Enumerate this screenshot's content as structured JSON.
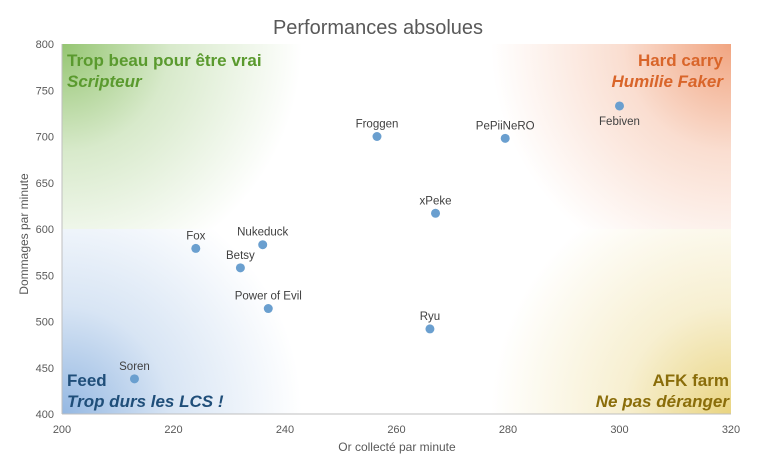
{
  "chart_data": {
    "type": "scatter",
    "title": "Performances absolues",
    "xlabel": "Or collecté par minute",
    "ylabel": "Dommages par minute",
    "xlim": [
      200,
      320
    ],
    "ylim": [
      400,
      800
    ],
    "xticks": [
      "200",
      "220",
      "240",
      "260",
      "280",
      "300",
      "320"
    ],
    "yticks": [
      "400",
      "450",
      "500",
      "550",
      "600",
      "650",
      "700",
      "750",
      "800"
    ],
    "grid": false,
    "point_color": "#6a9fcf",
    "points": [
      {
        "label": "Froggen",
        "x": 256.5,
        "y": 700,
        "label_pos": "above"
      },
      {
        "label": "PePiiNeRO",
        "x": 279.5,
        "y": 698,
        "label_pos": "above"
      },
      {
        "label": "Febiven",
        "x": 300,
        "y": 733,
        "label_pos": "below"
      },
      {
        "label": "xPeke",
        "x": 267,
        "y": 617,
        "label_pos": "above"
      },
      {
        "label": "Fox",
        "x": 224,
        "y": 579,
        "label_pos": "above"
      },
      {
        "label": "Nukeduck",
        "x": 236,
        "y": 583,
        "label_pos": "above"
      },
      {
        "label": "Betsy",
        "x": 232,
        "y": 558,
        "label_pos": "above"
      },
      {
        "label": "Power of Evil",
        "x": 237,
        "y": 514,
        "label_pos": "above"
      },
      {
        "label": "Ryu",
        "x": 266,
        "y": 492,
        "label_pos": "above"
      },
      {
        "label": "Soren",
        "x": 213,
        "y": 438,
        "label_pos": "above"
      }
    ],
    "quadrants": [
      {
        "corner": "top-left",
        "title": "Trop beau pour être vrai",
        "subtitle": "Scripteur",
        "color": "#5a9a2e",
        "glow": "#8fc26a"
      },
      {
        "corner": "top-right",
        "title": "Hard carry",
        "subtitle": "Humilie Faker",
        "color": "#d9652a",
        "glow": "#f0a07a"
      },
      {
        "corner": "bottom-left",
        "title": "Feed",
        "subtitle": "Trop durs les LCS !",
        "color": "#1f4e79",
        "glow": "#8fb4e0"
      },
      {
        "corner": "bottom-right",
        "title": "AFK farm",
        "subtitle": "Ne pas déranger",
        "color": "#8a6d0a",
        "glow": "#e8d27a"
      }
    ]
  }
}
